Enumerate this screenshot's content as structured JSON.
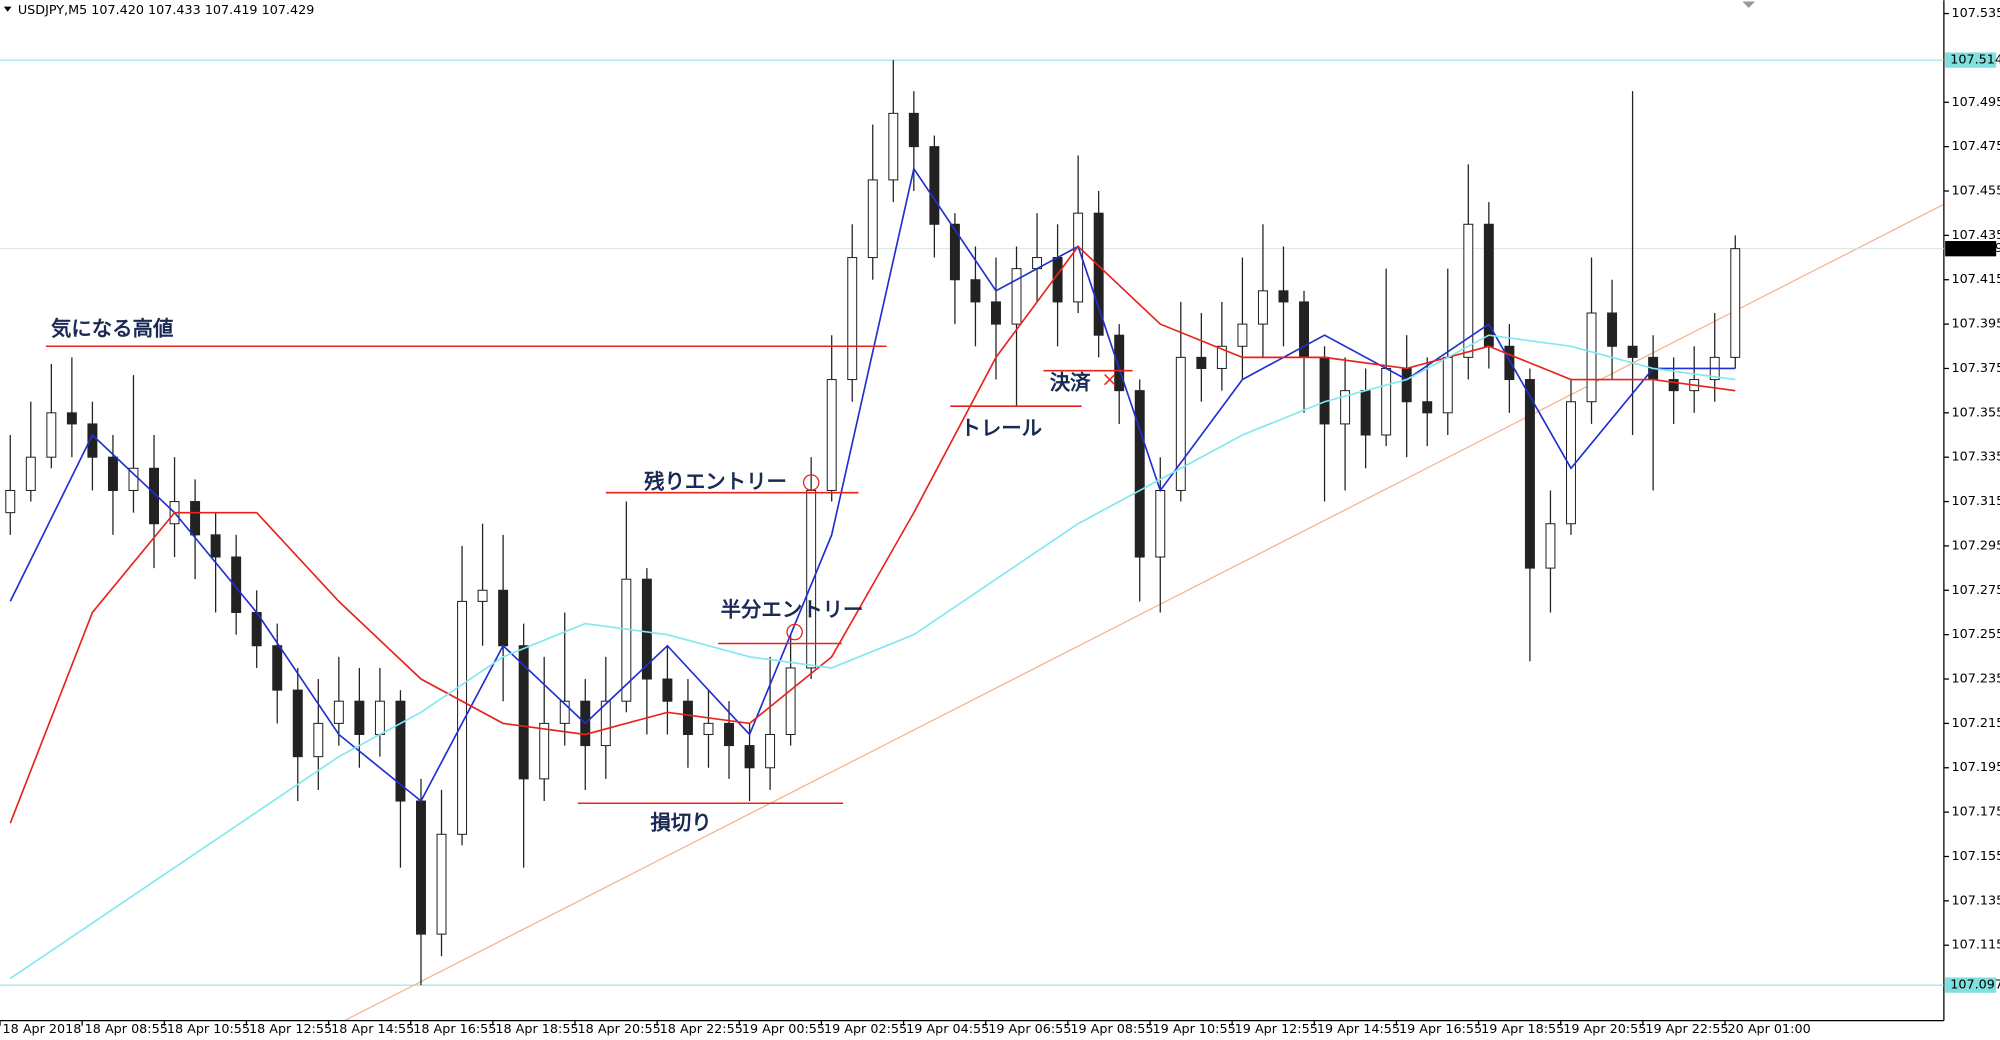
{
  "chart_data": {
    "type": "candlestick",
    "header": "USDJPY,M5  107.420 107.433 107.419 107.429",
    "categories": [
      "18 Apr 2018",
      "18 Apr 08:55",
      "18 Apr 10:55",
      "18 Apr 12:55",
      "18 Apr 14:55",
      "18 Apr 16:55",
      "18 Apr 18:55",
      "18 Apr 20:55",
      "18 Apr 22:55",
      "19 Apr 00:55",
      "19 Apr 02:55",
      "19 Apr 04:55",
      "19 Apr 06:55",
      "19 Apr 08:55",
      "19 Apr 10:55",
      "19 Apr 12:55",
      "19 Apr 14:55",
      "19 Apr 16:55",
      "19 Apr 18:55",
      "19 Apr 20:55",
      "19 Apr 22:55",
      "20 Apr 01:00"
    ],
    "open": [
      107.31,
      107.32,
      107.335,
      107.355,
      107.35,
      107.335,
      107.32,
      107.33,
      107.305,
      107.315,
      107.3,
      107.29,
      107.265,
      107.25,
      107.23,
      107.2,
      107.215,
      107.225,
      107.21,
      107.225,
      107.18,
      107.12,
      107.165,
      107.27,
      107.275,
      107.25,
      107.19,
      107.215,
      107.225,
      107.205,
      107.225,
      107.28,
      107.235,
      107.225,
      107.21,
      107.215,
      107.205,
      107.195,
      107.21,
      107.24,
      107.32,
      107.37,
      107.425,
      107.46,
      107.49,
      107.475,
      107.44,
      107.415,
      107.405,
      107.395,
      107.42,
      107.425,
      107.405,
      107.445,
      107.39,
      107.365,
      107.29,
      107.32,
      107.38,
      107.375,
      107.385,
      107.395,
      107.41,
      107.405,
      107.38,
      107.35,
      107.365,
      107.345,
      107.375,
      107.36,
      107.355,
      107.38,
      107.44,
      107.385,
      107.37,
      107.285,
      107.305,
      107.36,
      107.4,
      107.385,
      107.38,
      107.37,
      107.365,
      107.37,
      107.38
    ],
    "high": [
      107.345,
      107.36,
      107.377,
      107.38,
      107.36,
      107.345,
      107.372,
      107.345,
      107.335,
      107.325,
      107.31,
      107.3,
      107.275,
      107.26,
      107.24,
      107.235,
      107.245,
      107.24,
      107.24,
      107.23,
      107.19,
      107.185,
      107.295,
      107.305,
      107.3,
      107.26,
      107.245,
      107.265,
      107.235,
      107.245,
      107.315,
      107.285,
      107.25,
      107.235,
      107.23,
      107.225,
      107.215,
      107.245,
      107.255,
      107.335,
      107.39,
      107.44,
      107.485,
      107.514,
      107.5,
      107.48,
      107.445,
      107.43,
      107.425,
      107.43,
      107.445,
      107.44,
      107.471,
      107.455,
      107.395,
      107.37,
      107.335,
      107.405,
      107.4,
      107.405,
      107.425,
      107.44,
      107.43,
      107.41,
      107.385,
      107.38,
      107.375,
      107.42,
      107.39,
      107.38,
      107.42,
      107.467,
      107.45,
      107.395,
      107.375,
      107.32,
      107.37,
      107.425,
      107.415,
      107.5,
      107.39,
      107.38,
      107.385,
      107.4,
      107.435
    ],
    "low": [
      107.3,
      107.315,
      107.33,
      107.335,
      107.32,
      107.3,
      107.31,
      107.285,
      107.29,
      107.28,
      107.265,
      107.255,
      107.24,
      107.215,
      107.18,
      107.185,
      107.205,
      107.195,
      107.2,
      107.15,
      107.097,
      107.11,
      107.16,
      107.25,
      107.225,
      107.15,
      107.18,
      107.205,
      107.185,
      107.19,
      107.22,
      107.21,
      107.21,
      107.195,
      107.195,
      107.19,
      107.18,
      107.185,
      107.205,
      107.235,
      107.315,
      107.36,
      107.415,
      107.45,
      107.455,
      107.425,
      107.395,
      107.385,
      107.37,
      107.358,
      107.405,
      107.385,
      107.4,
      107.38,
      107.35,
      107.27,
      107.265,
      107.315,
      107.36,
      107.365,
      107.37,
      107.38,
      107.385,
      107.355,
      107.315,
      107.32,
      107.33,
      107.34,
      107.335,
      107.34,
      107.345,
      107.37,
      107.375,
      107.355,
      107.243,
      107.265,
      107.3,
      107.35,
      107.37,
      107.345,
      107.32,
      107.35,
      107.355,
      107.36,
      107.375
    ],
    "close": [
      107.32,
      107.335,
      107.355,
      107.35,
      107.335,
      107.32,
      107.33,
      107.305,
      107.315,
      107.3,
      107.29,
      107.265,
      107.25,
      107.23,
      107.2,
      107.215,
      107.225,
      107.21,
      107.225,
      107.18,
      107.12,
      107.165,
      107.27,
      107.275,
      107.25,
      107.19,
      107.215,
      107.225,
      107.205,
      107.225,
      107.28,
      107.235,
      107.225,
      107.21,
      107.215,
      107.205,
      107.195,
      107.21,
      107.24,
      107.32,
      107.37,
      107.425,
      107.46,
      107.49,
      107.475,
      107.44,
      107.415,
      107.405,
      107.395,
      107.42,
      107.425,
      107.405,
      107.445,
      107.39,
      107.365,
      107.29,
      107.32,
      107.38,
      107.375,
      107.385,
      107.395,
      107.41,
      107.405,
      107.38,
      107.35,
      107.365,
      107.345,
      107.375,
      107.36,
      107.355,
      107.38,
      107.44,
      107.385,
      107.37,
      107.285,
      107.305,
      107.36,
      107.4,
      107.385,
      107.38,
      107.37,
      107.365,
      107.37,
      107.38,
      107.429
    ],
    "lines": [
      {
        "color": "#1f2fd0",
        "x": [
          0,
          4,
          8,
          12,
          16,
          20,
          24,
          28,
          32,
          36,
          40,
          44,
          48,
          52,
          56,
          60,
          64,
          68,
          72,
          76,
          80,
          84
        ],
        "values": [
          107.27,
          107.345,
          107.31,
          107.265,
          107.21,
          107.18,
          107.25,
          107.215,
          107.25,
          107.21,
          107.3,
          107.465,
          107.41,
          107.43,
          107.32,
          107.37,
          107.39,
          107.37,
          107.395,
          107.33,
          107.375,
          107.375
        ]
      },
      {
        "color": "#e8231c",
        "x": [
          0,
          4,
          8,
          12,
          16,
          20,
          24,
          28,
          32,
          36,
          40,
          44,
          48,
          52,
          56,
          60,
          64,
          68,
          72,
          76,
          80,
          84
        ],
        "values": [
          107.17,
          107.265,
          107.31,
          107.31,
          107.27,
          107.235,
          107.215,
          107.21,
          107.22,
          107.215,
          107.245,
          107.31,
          107.38,
          107.43,
          107.395,
          107.38,
          107.38,
          107.375,
          107.385,
          107.37,
          107.37,
          107.365
        ]
      },
      {
        "color": "#7fe8f0",
        "x": [
          0,
          4,
          8,
          12,
          16,
          20,
          24,
          28,
          32,
          36,
          40,
          44,
          48,
          52,
          56,
          60,
          64,
          68,
          72,
          76,
          80,
          84
        ],
        "values": [
          107.1,
          107.125,
          107.15,
          107.175,
          107.2,
          107.22,
          107.245,
          107.26,
          107.255,
          107.245,
          107.24,
          107.255,
          107.28,
          107.305,
          107.325,
          107.345,
          107.36,
          107.37,
          107.39,
          107.385,
          107.375,
          107.37
        ]
      }
    ],
    "ylim": [
      107.081,
      107.541
    ],
    "yticks": [
      107.535,
      107.495,
      107.475,
      107.455,
      107.435,
      107.415,
      107.395,
      107.375,
      107.355,
      107.335,
      107.315,
      107.295,
      107.275,
      107.255,
      107.235,
      107.215,
      107.195,
      107.175,
      107.155,
      107.135,
      107.115
    ],
    "price_marks": [
      {
        "value": 107.514,
        "color": "#7fe0e0"
      },
      {
        "value": 107.429,
        "color": "#000000"
      },
      {
        "value": 107.097,
        "color": "#7fe0e0"
      }
    ],
    "annotations": [
      {
        "text": "気になる高値",
        "level": 107.385
      },
      {
        "text": "残りエントリー",
        "level": 107.319
      },
      {
        "text": "半分エントリー",
        "level": 107.251
      },
      {
        "text": "損切り",
        "level": 107.179
      },
      {
        "text": "トレール",
        "level": 107.358
      },
      {
        "text": "決済",
        "level": 107.374
      }
    ]
  }
}
